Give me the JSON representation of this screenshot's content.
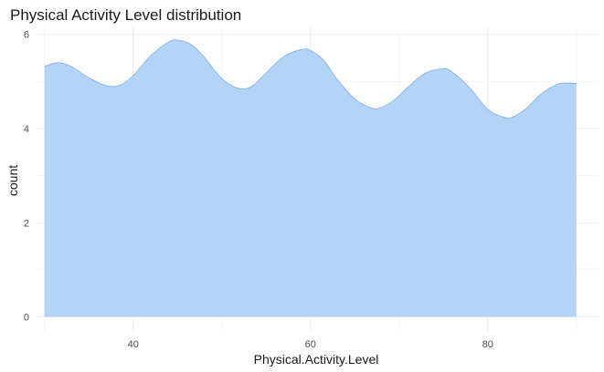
{
  "chart_data": {
    "type": "area",
    "title": "Physical Activity Level distribution",
    "xlabel": "Physical.Activity.Level",
    "ylabel": "count",
    "xlim": [
      29,
      92.5
    ],
    "ylim": [
      -0.3,
      6.15
    ],
    "x_ticks": [
      40,
      60,
      80
    ],
    "y_ticks": [
      0,
      2,
      4,
      6
    ],
    "x_minor_ticks": [
      30,
      50,
      70,
      90
    ],
    "y_minor_ticks": [
      1,
      3,
      5
    ],
    "grid": true,
    "fill_color": "#b3d3f7",
    "line_color": "#6fa7e8",
    "series": [
      {
        "name": "density",
        "x": [
          30,
          31.5,
          33,
          35,
          37,
          38.5,
          40,
          42,
          44,
          45,
          46.5,
          48,
          50,
          52,
          53.5,
          55,
          57,
          59,
          60,
          61.5,
          63,
          65,
          67,
          68,
          69.5,
          71,
          73,
          75,
          76,
          78,
          80,
          82,
          83,
          84.5,
          86,
          88,
          90
        ],
        "y": [
          5.32,
          5.4,
          5.32,
          5.08,
          4.91,
          4.92,
          5.12,
          5.55,
          5.84,
          5.88,
          5.79,
          5.52,
          5.06,
          4.85,
          4.91,
          5.18,
          5.53,
          5.68,
          5.66,
          5.45,
          5.05,
          4.63,
          4.43,
          4.45,
          4.61,
          4.88,
          5.18,
          5.27,
          5.2,
          4.86,
          4.41,
          4.23,
          4.26,
          4.45,
          4.73,
          4.95,
          4.96
        ]
      }
    ]
  }
}
